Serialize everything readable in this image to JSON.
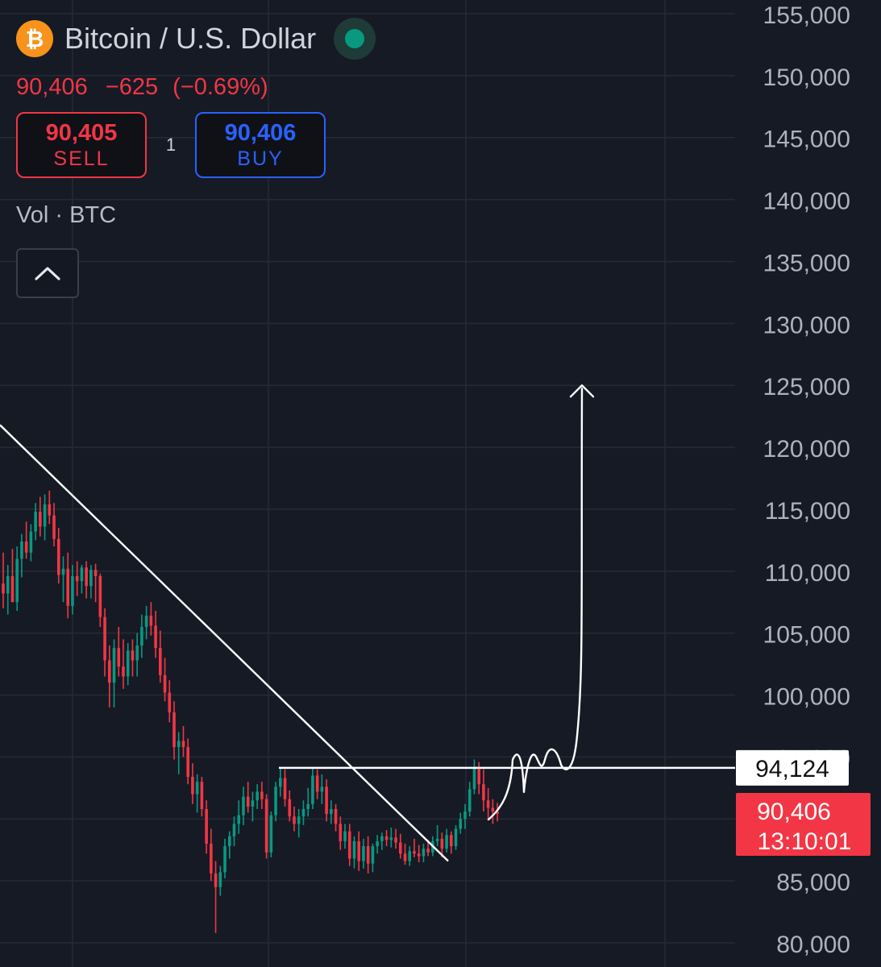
{
  "header": {
    "coin_icon": "bitcoin-logo",
    "title": "Bitcoin / U.S. Dollar",
    "market_status_icon": "market-open-dot",
    "last_price": "90,406",
    "change": "−625",
    "change_pct": "(−0.69%)",
    "sell_price": "90,405",
    "sell_label": "SELL",
    "buy_price": "90,406",
    "buy_label": "BUY",
    "spread": "1",
    "volume_label": "Vol · BTC",
    "collapse_icon": "chevron-up-icon"
  },
  "colors": {
    "background": "#161a25",
    "up": "#089981",
    "down": "#f23645",
    "buy": "#2962ff",
    "btc": "#f7931a",
    "annotation": "#ffffff"
  },
  "chart_data": {
    "type": "candlestick",
    "y_axis_position": "right",
    "ylim": [
      78000,
      156000
    ],
    "y_ticks": [
      "155,000",
      "150,000",
      "145,000",
      "140,000",
      "135,000",
      "130,000",
      "125,000",
      "120,000",
      "115,000",
      "110,000",
      "105,000",
      "100,000",
      "95,000",
      "90,000",
      "85,000",
      "80,000"
    ],
    "grid": true,
    "price_labels": [
      {
        "value": 94124,
        "text": "94,124",
        "style": "white"
      },
      {
        "value": 90406,
        "text": "90,406",
        "countdown": "13:10:01",
        "style": "red"
      }
    ],
    "annotations": [
      {
        "type": "descending-trendline",
        "from": 121800,
        "to": 86600
      },
      {
        "type": "horizontal-resistance",
        "value": 94124
      },
      {
        "type": "projection-arrow",
        "from": 94124,
        "to": 125000
      }
    ],
    "candles_ohlc": [
      [
        109000,
        111500,
        107000,
        108200
      ],
      [
        108200,
        110500,
        106500,
        109600
      ],
      [
        109600,
        111800,
        108000,
        107500
      ],
      [
        107500,
        112000,
        106800,
        111000
      ],
      [
        111000,
        113000,
        109500,
        112400
      ],
      [
        112400,
        114000,
        111000,
        111500
      ],
      [
        111500,
        113800,
        110800,
        113200
      ],
      [
        113200,
        115500,
        112500,
        114800
      ],
      [
        114800,
        116000,
        112800,
        113600
      ],
      [
        113600,
        116200,
        112500,
        115400
      ],
      [
        115400,
        116500,
        113800,
        114500
      ],
      [
        114500,
        115500,
        112000,
        112600
      ],
      [
        112600,
        113500,
        109000,
        109700
      ],
      [
        109700,
        111200,
        107500,
        110200
      ],
      [
        110200,
        111500,
        106200,
        107200
      ],
      [
        107200,
        110500,
        106500,
        109600
      ],
      [
        109600,
        110800,
        108000,
        109200
      ],
      [
        109200,
        110500,
        108200,
        110300
      ],
      [
        110300,
        110800,
        107800,
        108800
      ],
      [
        108800,
        110500,
        107800,
        110100
      ],
      [
        110100,
        110600,
        107500,
        109600
      ],
      [
        109600,
        109800,
        105500,
        106300
      ],
      [
        106300,
        107000,
        101500,
        102800
      ],
      [
        102800,
        104000,
        99000,
        101000
      ],
      [
        101000,
        104500,
        99000,
        103800
      ],
      [
        103800,
        105500,
        101500,
        102300
      ],
      [
        102300,
        104500,
        100500,
        101500
      ],
      [
        101500,
        104200,
        100800,
        103600
      ],
      [
        103600,
        104500,
        101500,
        102800
      ],
      [
        102800,
        105000,
        101500,
        104000
      ],
      [
        104000,
        106500,
        103000,
        105500
      ],
      [
        105500,
        107200,
        104500,
        106400
      ],
      [
        106400,
        107500,
        104800,
        105600
      ],
      [
        105600,
        106800,
        103000,
        103800
      ],
      [
        103800,
        105200,
        101000,
        101600
      ],
      [
        101600,
        103000,
        99500,
        100200
      ],
      [
        100200,
        101200,
        97800,
        98600
      ],
      [
        98600,
        99500,
        94800,
        95800
      ],
      [
        95800,
        97000,
        93600,
        96300
      ],
      [
        96300,
        97500,
        95000,
        95800
      ],
      [
        95800,
        96500,
        92800,
        93400
      ],
      [
        93400,
        94500,
        91200,
        92000
      ],
      [
        92000,
        93600,
        90500,
        93000
      ],
      [
        93000,
        93400,
        90200,
        90800
      ],
      [
        90800,
        91500,
        87200,
        88000
      ],
      [
        88000,
        89200,
        85000,
        85600
      ],
      [
        85600,
        86600,
        80800,
        84500
      ],
      [
        84500,
        86200,
        83800,
        85700
      ],
      [
        85700,
        88400,
        85200,
        87800
      ],
      [
        87800,
        89000,
        86800,
        88600
      ],
      [
        88600,
        90200,
        87800,
        89600
      ],
      [
        89600,
        91500,
        88800,
        90300
      ],
      [
        90300,
        92600,
        89500,
        91800
      ],
      [
        91800,
        93000,
        90500,
        91000
      ],
      [
        91000,
        92200,
        89800,
        91500
      ],
      [
        91500,
        92800,
        90800,
        92200
      ],
      [
        92200,
        93000,
        90800,
        91600
      ],
      [
        91600,
        92000,
        86800,
        87300
      ],
      [
        87300,
        90600,
        86900,
        90300
      ],
      [
        90300,
        93000,
        89800,
        92600
      ],
      [
        92600,
        94100,
        91800,
        93300
      ],
      [
        93300,
        94000,
        91000,
        91600
      ],
      [
        91600,
        92300,
        89800,
        90200
      ],
      [
        90200,
        91000,
        89000,
        89600
      ],
      [
        89600,
        90800,
        88500,
        90200
      ],
      [
        90200,
        91500,
        89500,
        90800
      ],
      [
        90800,
        92500,
        90200,
        91200
      ],
      [
        91200,
        94200,
        90800,
        93500
      ],
      [
        93500,
        94000,
        91600,
        92200
      ],
      [
        92200,
        93600,
        91200,
        92600
      ],
      [
        92600,
        93200,
        89800,
        90400
      ],
      [
        90400,
        91500,
        89600,
        90800
      ],
      [
        90800,
        91200,
        89000,
        89600
      ],
      [
        89600,
        90200,
        87500,
        88200
      ],
      [
        88200,
        89600,
        87600,
        89000
      ],
      [
        89000,
        89600,
        86200,
        86800
      ],
      [
        86800,
        88600,
        86000,
        88200
      ],
      [
        88200,
        89000,
        85800,
        86600
      ],
      [
        86600,
        88400,
        86000,
        87800
      ],
      [
        87800,
        88600,
        85600,
        86400
      ],
      [
        86400,
        88000,
        85700,
        87800
      ],
      [
        87800,
        88700,
        87200,
        88200
      ],
      [
        88200,
        88900,
        87500,
        88600
      ],
      [
        88600,
        89100,
        87800,
        88300
      ],
      [
        88300,
        89300,
        87700,
        88500
      ],
      [
        88500,
        89200,
        87600,
        88100
      ],
      [
        88100,
        88800,
        86800,
        87200
      ],
      [
        87200,
        88000,
        86300,
        86600
      ],
      [
        86600,
        87800,
        86200,
        87400
      ],
      [
        87400,
        88400,
        86900,
        87200
      ],
      [
        87200,
        87900,
        86500,
        87000
      ],
      [
        87000,
        88000,
        86500,
        87600
      ],
      [
        87600,
        88300,
        87000,
        87300
      ],
      [
        87300,
        88600,
        87000,
        88200
      ],
      [
        88200,
        89500,
        87800,
        88400
      ],
      [
        88400,
        88900,
        86900,
        87600
      ],
      [
        87600,
        89200,
        87300,
        88700
      ],
      [
        88700,
        89000,
        87200,
        87800
      ],
      [
        87800,
        89500,
        87500,
        89200
      ],
      [
        89200,
        90500,
        88800,
        90000
      ],
      [
        90000,
        91200,
        89200,
        90600
      ],
      [
        90600,
        93000,
        90200,
        92400
      ],
      [
        92400,
        94800,
        92000,
        94200
      ],
      [
        94200,
        94600,
        92000,
        92800
      ],
      [
        92800,
        94000,
        90600,
        91500
      ],
      [
        91500,
        92500,
        90000,
        90900
      ],
      [
        90900,
        91600,
        89600,
        90600
      ],
      [
        90600,
        91300,
        89800,
        90406
      ]
    ]
  }
}
